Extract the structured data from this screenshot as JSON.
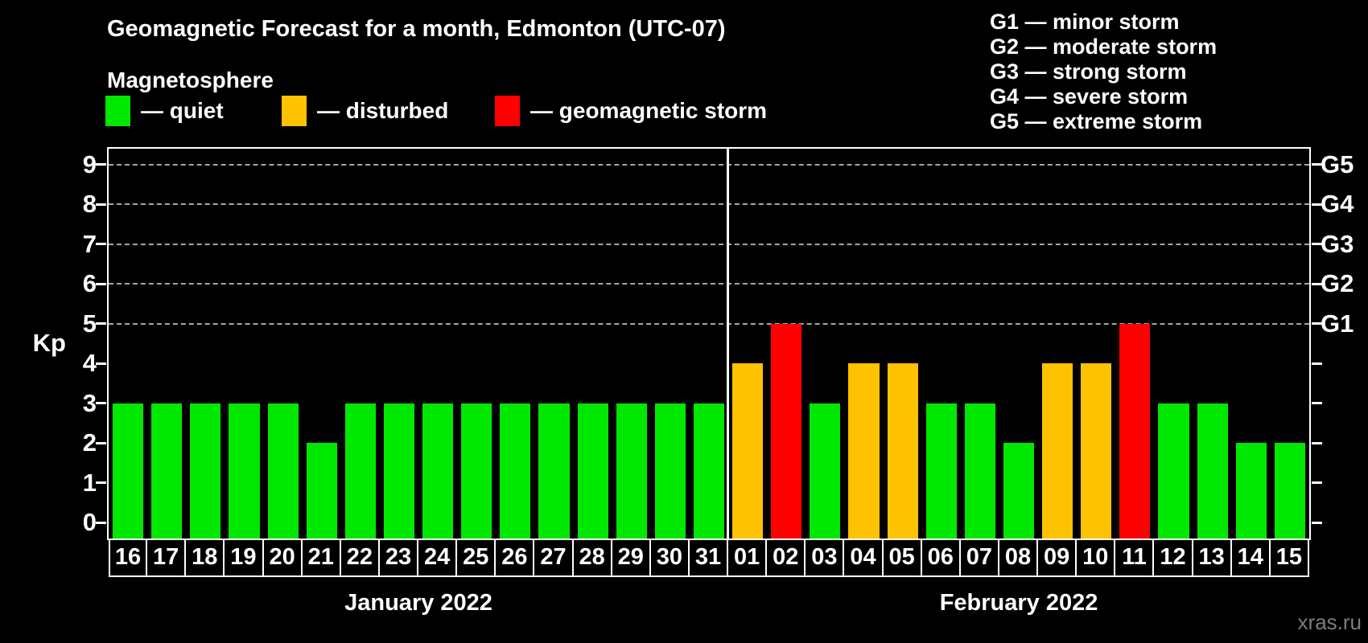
{
  "title": "Geomagnetic Forecast for a month, Edmonton (UTC-07)",
  "magnetosphere_label": "Magnetosphere",
  "legend": [
    {
      "status": "quiet",
      "label": "— quiet",
      "color": "#00e800"
    },
    {
      "status": "disturbed",
      "label": "— disturbed",
      "color": "#ffc200"
    },
    {
      "status": "storm",
      "label": "— geomagnetic storm",
      "color": "#ff0000"
    }
  ],
  "g_legend": [
    "G1 — minor storm",
    "G2 — moderate storm",
    "G3 — strong storm",
    "G4 — severe storm",
    "G5 — extreme storm"
  ],
  "axis": {
    "kp_label": "Kp",
    "left_ticks": [
      "0",
      "1",
      "2",
      "3",
      "4",
      "5",
      "6",
      "7",
      "8",
      "9"
    ],
    "right_labels": [
      {
        "kp": 5,
        "label": "G1"
      },
      {
        "kp": 6,
        "label": "G2"
      },
      {
        "kp": 7,
        "label": "G3"
      },
      {
        "kp": 8,
        "label": "G4"
      },
      {
        "kp": 9,
        "label": "G5"
      }
    ]
  },
  "watermark": "xras.ru",
  "colors": {
    "background": "#000000",
    "axis": "#ffffff",
    "grid": "#a6a6a6",
    "watermark": "#7d7d7d"
  },
  "chart_data": {
    "type": "bar",
    "title": "Geomagnetic Forecast for a month, Edmonton (UTC-07)",
    "ylabel": "Kp",
    "ylim": [
      0,
      9
    ],
    "yticks": [
      0,
      1,
      2,
      3,
      4,
      5,
      6,
      7,
      8,
      9
    ],
    "grid_levels_kp": [
      5,
      6,
      7,
      8,
      9
    ],
    "g_scale": {
      "G1": 5,
      "G2": 6,
      "G3": 7,
      "G4": 8,
      "G5": 9
    },
    "legend_position": "top-left",
    "status_colors": {
      "quiet": "#00e800",
      "disturbed": "#ffc200",
      "storm": "#ff0000"
    },
    "months": [
      {
        "label": "January 2022",
        "days": [
          "16",
          "17",
          "18",
          "19",
          "20",
          "21",
          "22",
          "23",
          "24",
          "25",
          "26",
          "27",
          "28",
          "29",
          "30",
          "31"
        ],
        "kp_values": [
          3,
          3,
          3,
          3,
          3,
          2,
          3,
          3,
          3,
          3,
          3,
          3,
          3,
          3,
          3,
          3
        ],
        "statuses": [
          "quiet",
          "quiet",
          "quiet",
          "quiet",
          "quiet",
          "quiet",
          "quiet",
          "quiet",
          "quiet",
          "quiet",
          "quiet",
          "quiet",
          "quiet",
          "quiet",
          "quiet",
          "quiet"
        ]
      },
      {
        "label": "February 2022",
        "days": [
          "01",
          "02",
          "03",
          "04",
          "05",
          "06",
          "07",
          "08",
          "09",
          "10",
          "11",
          "12",
          "13",
          "14",
          "15"
        ],
        "kp_values": [
          4,
          5,
          3,
          4,
          4,
          3,
          3,
          2,
          4,
          4,
          5,
          3,
          3,
          2,
          2
        ],
        "statuses": [
          "disturbed",
          "storm",
          "quiet",
          "disturbed",
          "disturbed",
          "quiet",
          "quiet",
          "quiet",
          "disturbed",
          "disturbed",
          "storm",
          "quiet",
          "quiet",
          "quiet",
          "quiet"
        ]
      }
    ]
  }
}
